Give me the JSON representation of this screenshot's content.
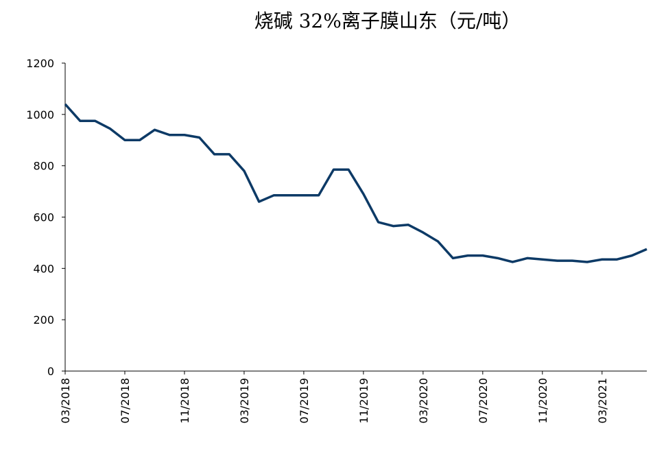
{
  "chart_data": {
    "type": "line",
    "title": "烧碱 32%离子膜山东（元/吨）",
    "x": [
      "03/2018",
      "04/2018",
      "05/2018",
      "06/2018",
      "07/2018",
      "08/2018",
      "09/2018",
      "10/2018",
      "11/2018",
      "12/2018",
      "01/2019",
      "02/2019",
      "03/2019",
      "04/2019",
      "05/2019",
      "06/2019",
      "07/2019",
      "08/2019",
      "09/2019",
      "10/2019",
      "11/2019",
      "12/2019",
      "01/2020",
      "02/2020",
      "03/2020",
      "04/2020",
      "05/2020",
      "06/2020",
      "07/2020",
      "08/2020",
      "09/2020",
      "10/2020",
      "11/2020",
      "12/2020",
      "01/2021",
      "02/2021",
      "03/2021",
      "04/2021",
      "05/2021",
      "06/2021"
    ],
    "xticks": [
      "03/2018",
      "07/2018",
      "11/2018",
      "03/2019",
      "07/2019",
      "11/2019",
      "03/2020",
      "07/2020",
      "11/2020",
      "03/2021"
    ],
    "series": [
      {
        "color": "#0d3a66",
        "values": [
          1040,
          975,
          975,
          945,
          900,
          900,
          940,
          920,
          920,
          910,
          845,
          845,
          780,
          660,
          685,
          685,
          685,
          685,
          785,
          785,
          690,
          580,
          565,
          570,
          540,
          505,
          440,
          450,
          450,
          440,
          425,
          440,
          435,
          430,
          430,
          425,
          435,
          435,
          450,
          475
        ]
      }
    ],
    "ylim": [
      0,
      1200
    ],
    "yticks": [
      0,
      200,
      400,
      600,
      800,
      1000,
      1200
    ]
  }
}
